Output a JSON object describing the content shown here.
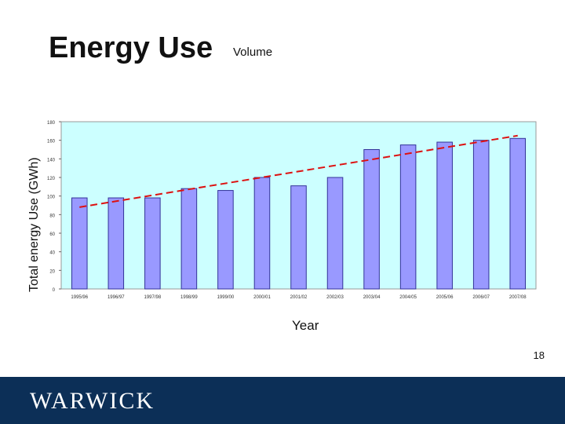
{
  "slide": {
    "title": "Energy Use",
    "subtitle": "Volume",
    "page_number": "18",
    "logo_text": "WARWICK"
  },
  "colors": {
    "plot_bg": "#ccffff",
    "bar_fill": "#9999ff",
    "bar_stroke": "#333399",
    "trend": "#dd1111",
    "footer": "#0c2f57"
  },
  "chart_data": {
    "type": "bar",
    "title": "",
    "ylabel": "Total energy Use (GWh)",
    "xlabel": "Year",
    "ylim": [
      0,
      180
    ],
    "yticks": [
      0,
      20,
      40,
      60,
      80,
      100,
      120,
      140,
      160,
      180
    ],
    "grid": false,
    "categories": [
      "1995/96",
      "1996/97",
      "1997/98",
      "1998/99",
      "1999/00",
      "2000/01",
      "2001/02",
      "2002/03",
      "2003/04",
      "2004/05",
      "2005/06",
      "2006/07",
      "2007/08"
    ],
    "series": [
      {
        "values": [
          98,
          98,
          98,
          108,
          106,
          120,
          111,
          120,
          150,
          155,
          158,
          160,
          162
        ]
      }
    ],
    "trendline": {
      "style": "dashed",
      "start": 88,
      "end": 165
    }
  }
}
